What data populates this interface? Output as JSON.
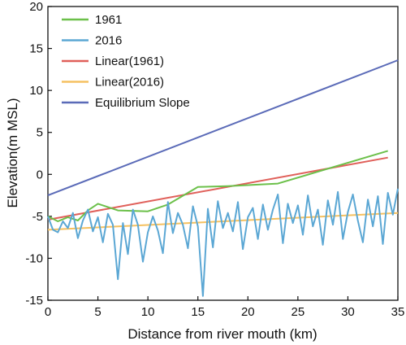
{
  "chart_data": {
    "type": "line",
    "xlabel": "Distance from river mouth (km)",
    "ylabel": "Elevation(m MSL)",
    "xlim": [
      0,
      35
    ],
    "ylim": [
      -15,
      20
    ],
    "xticks": [
      0,
      5,
      10,
      15,
      20,
      25,
      30,
      35
    ],
    "yticks": [
      -15,
      -10,
      -5,
      0,
      5,
      10,
      15,
      20
    ],
    "grid": false,
    "legend_position": "top-left",
    "series": [
      {
        "name": "1961",
        "color": "#6cc04a",
        "x": [
          0,
          1.0,
          2.0,
          3.0,
          4.0,
          5.0,
          7.0,
          10.0,
          12.0,
          15.0,
          18.0,
          23.0,
          34.0
        ],
        "y": [
          -5.0,
          -5.6,
          -5.1,
          -5.5,
          -4.3,
          -3.5,
          -4.3,
          -4.4,
          -3.6,
          -1.5,
          -1.4,
          -1.1,
          2.8
        ]
      },
      {
        "name": "2016",
        "color": "#5ba7d4",
        "x": [
          0.0,
          0.5,
          1.0,
          1.5,
          2.0,
          2.5,
          3.0,
          3.5,
          4.0,
          4.5,
          5.0,
          5.5,
          6.0,
          6.5,
          7.0,
          7.5,
          8.0,
          8.5,
          9.0,
          9.5,
          10.0,
          10.5,
          11.0,
          11.5,
          12.0,
          12.5,
          13.0,
          13.5,
          14.0,
          14.5,
          15.0,
          15.5,
          16.0,
          16.5,
          17.0,
          17.5,
          18.0,
          18.5,
          19.0,
          19.5,
          20.0,
          20.5,
          21.0,
          21.5,
          22.0,
          22.5,
          23.0,
          23.5,
          24.0,
          24.5,
          25.0,
          25.5,
          26.0,
          26.5,
          27.0,
          27.5,
          28.0,
          28.5,
          29.0,
          29.5,
          30.0,
          30.5,
          31.0,
          31.5,
          32.0,
          32.5,
          33.0,
          33.5,
          34.0,
          34.5,
          35.0
        ],
        "y": [
          -5.0,
          -6.6,
          -6.9,
          -5.6,
          -6.4,
          -4.6,
          -7.6,
          -5.5,
          -4.2,
          -6.8,
          -5.1,
          -8.1,
          -4.7,
          -6.0,
          -12.5,
          -5.8,
          -9.5,
          -4.2,
          -6.0,
          -10.4,
          -6.9,
          -5.0,
          -6.7,
          -9.4,
          -3.3,
          -7.0,
          -4.6,
          -6.0,
          -8.8,
          -3.8,
          -6.2,
          -14.5,
          -4.1,
          -8.7,
          -3.2,
          -6.4,
          -4.6,
          -6.8,
          -3.3,
          -8.9,
          -5.1,
          -4.0,
          -7.7,
          -3.6,
          -6.6,
          -4.2,
          -2.4,
          -8.2,
          -3.5,
          -5.8,
          -3.7,
          -7.2,
          -2.5,
          -6.2,
          -4.2,
          -8.4,
          -3.1,
          -6.0,
          -2.1,
          -7.7,
          -4.5,
          -2.4,
          -5.5,
          -8.1,
          -3.0,
          -6.2,
          -2.6,
          -8.3,
          -2.2,
          -4.8,
          -1.7
        ]
      },
      {
        "name": "Linear(1961)",
        "color": "#e0605a",
        "x": [
          0,
          34
        ],
        "y": [
          -5.4,
          2.0
        ]
      },
      {
        "name": "Linear(2016)",
        "color": "#f5c160",
        "x": [
          0,
          35
        ],
        "y": [
          -6.6,
          -4.6
        ]
      },
      {
        "name": "Equilibrium Slope",
        "color": "#5b6bb8",
        "x": [
          0,
          35
        ],
        "y": [
          -2.5,
          13.6
        ]
      }
    ]
  }
}
